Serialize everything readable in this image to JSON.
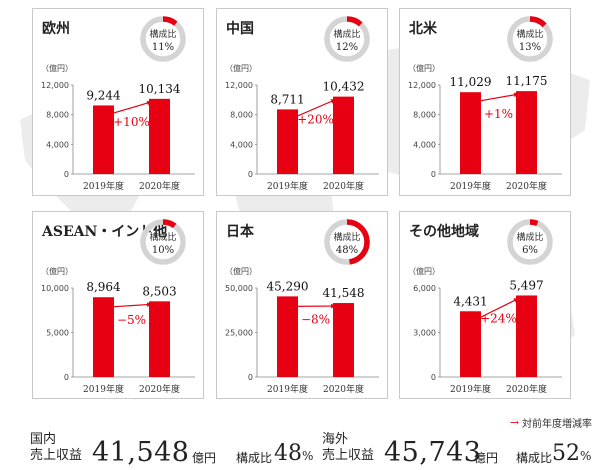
{
  "chart_data": [
    {
      "type": "bar",
      "title": "欧州",
      "ratio_label": "構成比",
      "ratio": "11%",
      "ratio_value": 11,
      "yunit": "（億円）",
      "ticks": [
        "12,000",
        "8,000",
        "4,000",
        "0"
      ],
      "ylim": [
        0,
        12000
      ],
      "categories": [
        "2019年度",
        "2020年度"
      ],
      "values": [
        9244,
        10134
      ],
      "value_labels": [
        "9,244",
        "10,134"
      ],
      "change": "+10%"
    },
    {
      "type": "bar",
      "title": "中国",
      "ratio_label": "構成比",
      "ratio": "12%",
      "ratio_value": 12,
      "yunit": "（億円）",
      "ticks": [
        "12,000",
        "8,000",
        "4,000",
        "0"
      ],
      "ylim": [
        0,
        12000
      ],
      "categories": [
        "2019年度",
        "2020年度"
      ],
      "values": [
        8711,
        10432
      ],
      "value_labels": [
        "8,711",
        "10,432"
      ],
      "change": "+20%"
    },
    {
      "type": "bar",
      "title": "北米",
      "ratio_label": "構成比",
      "ratio": "13%",
      "ratio_value": 13,
      "yunit": "（億円）",
      "ticks": [
        "12,000",
        "8,000",
        "4,000",
        "0"
      ],
      "ylim": [
        0,
        12000
      ],
      "categories": [
        "2019年度",
        "2020年度"
      ],
      "values": [
        11029,
        11175
      ],
      "value_labels": [
        "11,029",
        "11,175"
      ],
      "change": "+1%"
    },
    {
      "type": "bar",
      "title": "ASEAN・インド他",
      "ratio_label": "構成比",
      "ratio": "10%",
      "ratio_value": 10,
      "yunit": "（億円）",
      "ticks": [
        "10,000",
        "5,000",
        "0"
      ],
      "ylim": [
        0,
        10000
      ],
      "categories": [
        "2019年度",
        "2020年度"
      ],
      "values": [
        8964,
        8503
      ],
      "value_labels": [
        "8,964",
        "8,503"
      ],
      "change": "−5%"
    },
    {
      "type": "bar",
      "title": "日本",
      "ratio_label": "構成比",
      "ratio": "48%",
      "ratio_value": 48,
      "yunit": "（億円）",
      "ticks": [
        "50,000",
        "25,000",
        "0"
      ],
      "ylim": [
        0,
        50000
      ],
      "categories": [
        "2019年度",
        "2020年度"
      ],
      "values": [
        45290,
        41548
      ],
      "value_labels": [
        "45,290",
        "41,548"
      ],
      "change": "−8%"
    },
    {
      "type": "bar",
      "title": "その他地域",
      "ratio_label": "構成比",
      "ratio": "6%",
      "ratio_value": 6,
      "yunit": "（億円）",
      "ticks": [
        "6,000",
        "3,000",
        "0"
      ],
      "ylim": [
        0,
        6000
      ],
      "categories": [
        "2019年度",
        "2020年度"
      ],
      "values": [
        4431,
        5497
      ],
      "value_labels": [
        "4,431",
        "5,497"
      ],
      "change": "+24%"
    }
  ],
  "legend": {
    "label": "対前年度増減率"
  },
  "summary": {
    "domestic": {
      "label_line1": "国内",
      "label_line2": "売上収益",
      "amount": "41,548",
      "unit": "億円",
      "ratio_label": "構成比",
      "ratio": "48",
      "pct": "%"
    },
    "overseas": {
      "label_line1": "海外",
      "label_line2": "売上収益",
      "amount": "45,743",
      "unit": "億円",
      "ratio_label": "構成比",
      "ratio": "52",
      "pct": "%"
    }
  },
  "colors": {
    "bar": "#e60012",
    "ring_bg": "#d4d4d4",
    "ring_fg": "#e60012",
    "panel_border": "#c9c9c9",
    "map": "#ececec"
  }
}
